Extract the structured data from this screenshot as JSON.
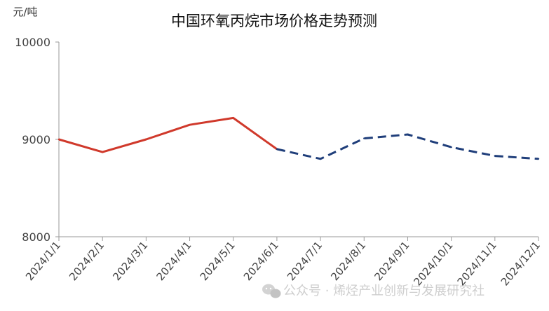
{
  "chart_data": {
    "type": "line",
    "title": "中国环氧丙烷市场价格走势预测",
    "unit_label": "元/吨",
    "categories": [
      "2024/1/1",
      "2024/2/1",
      "2024/3/1",
      "2024/4/1",
      "2024/5/1",
      "2024/6/1",
      "2024/7/1",
      "2024/8/1",
      "2024/9/1",
      "2024/10/1",
      "2024/11/1",
      "2024/12/1"
    ],
    "ylim": [
      8000,
      10000
    ],
    "yticks": [
      8000,
      9000,
      10000
    ],
    "ytick_labels": [
      "8000",
      "9000",
      "10000"
    ],
    "grid": false,
    "legend": "none",
    "series": [
      {
        "style": "solid",
        "color": "#d0392b",
        "values": [
          9000,
          8870,
          9000,
          9150,
          9220,
          8900,
          null,
          null,
          null,
          null,
          null,
          null
        ]
      },
      {
        "style": "dashed",
        "color": "#1f3e7a",
        "values": [
          null,
          null,
          null,
          null,
          null,
          8900,
          8800,
          9010,
          9050,
          8920,
          8830,
          8800
        ]
      }
    ]
  },
  "watermark": {
    "text": "公众号 · 烯烃产业创新与发展研究社",
    "icon": "wechat-icon"
  }
}
